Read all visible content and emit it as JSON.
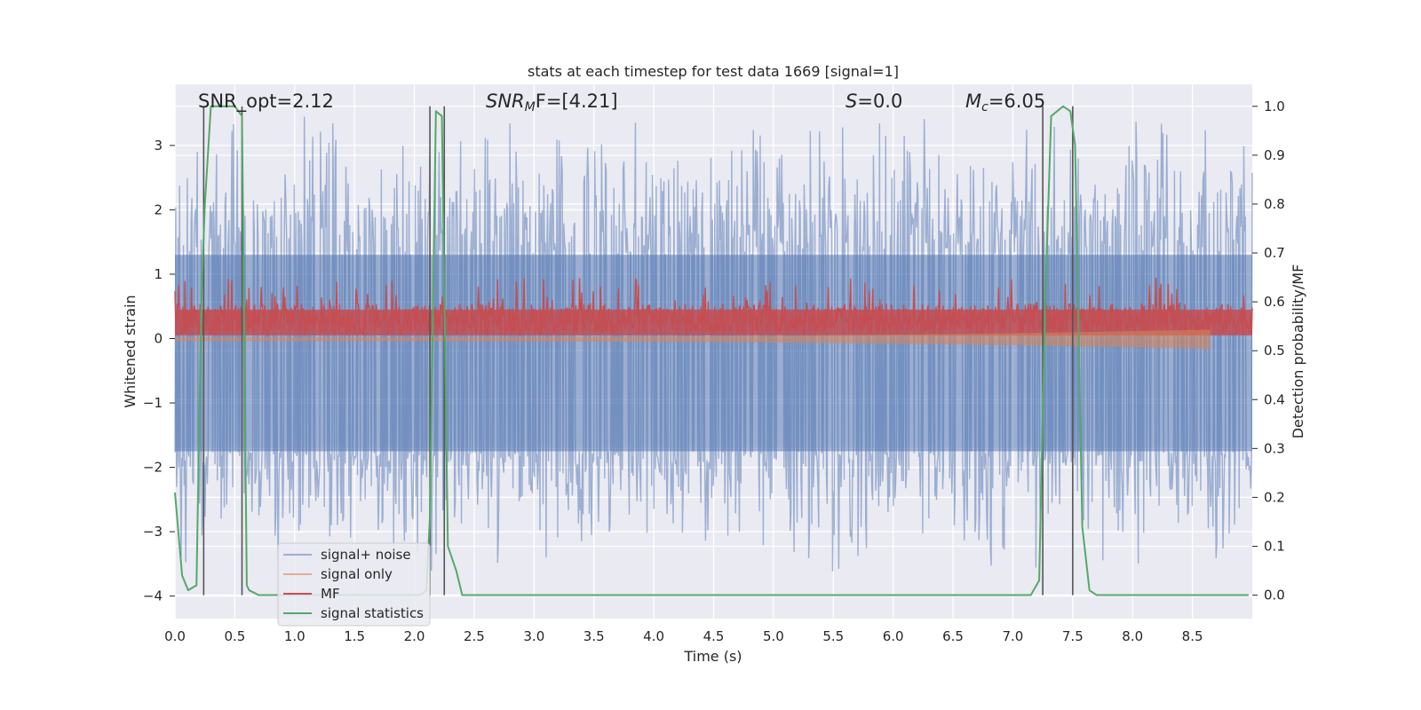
{
  "chart_data": {
    "type": "line",
    "title": "stats at each timestep for test data 1669 [signal=1]",
    "xlabel": "Time (s)",
    "ylabel": "Whitened strain",
    "ylabel_right": "Detection probability/MF",
    "xlim": [
      0,
      9.0
    ],
    "ylim": [
      -4.35,
      3.95
    ],
    "ylim_right": [
      -0.048,
      1.045
    ],
    "x_ticks": [
      "0.0",
      "0.5",
      "1.0",
      "1.5",
      "2.0",
      "2.5",
      "3.0",
      "3.5",
      "4.0",
      "4.5",
      "5.0",
      "5.5",
      "6.0",
      "6.5",
      "7.0",
      "7.5",
      "8.0",
      "8.5"
    ],
    "y_ticks": [
      "−4",
      "−3",
      "−2",
      "−1",
      "0",
      "1",
      "2",
      "3"
    ],
    "y_ticks_right": [
      "0.0",
      "0.1",
      "0.2",
      "0.3",
      "0.4",
      "0.5",
      "0.6",
      "0.7",
      "0.8",
      "0.9",
      "1.0"
    ],
    "annotations": {
      "snr_opt": "SNR_opt=2.12",
      "snr_mf_base": "SNR",
      "snr_mf_sub": "M",
      "snr_mf_rest": "F=[4.21]",
      "s_base": "S",
      "s_rest": "=0.0",
      "mc_base": "M",
      "mc_sub": "c",
      "mc_rest": "=6.05"
    },
    "legend": [
      "signal+ noise",
      "signal only",
      "MF",
      "signal statistics"
    ],
    "series": [
      {
        "name": "signal statistics",
        "axis": "right",
        "color": "#55a868",
        "x": [
          0.0,
          0.06,
          0.11,
          0.18,
          0.22,
          0.25,
          0.3,
          0.4,
          0.5,
          0.56,
          0.6,
          0.62,
          0.7,
          0.8,
          1.5,
          2.0,
          2.05,
          2.1,
          2.13,
          2.18,
          2.23,
          2.28,
          2.35,
          2.4,
          3.0,
          4.0,
          5.0,
          6.0,
          7.0,
          7.15,
          7.22,
          7.27,
          7.32,
          7.37,
          7.42,
          7.48,
          7.52,
          7.58,
          7.64,
          7.7,
          8.5,
          8.97
        ],
        "y": [
          0.21,
          0.04,
          0.01,
          0.02,
          0.6,
          0.8,
          1.0,
          1.0,
          1.0,
          0.98,
          0.02,
          0.01,
          0.0,
          0.0,
          0.0,
          0.0,
          0.0,
          0.01,
          0.16,
          0.99,
          0.98,
          0.1,
          0.05,
          0.0,
          0.0,
          0.0,
          0.0,
          0.0,
          0.0,
          0.0,
          0.03,
          0.6,
          0.98,
          0.99,
          1.0,
          0.99,
          0.92,
          0.14,
          0.01,
          0.0,
          0.0,
          0.0
        ]
      },
      {
        "name": "signal+ noise",
        "axis": "left",
        "color": "#4c72b0",
        "band": [
          -1.75,
          1.3
        ],
        "peak_range": [
          -3.8,
          3.55
        ]
      },
      {
        "name": "MF",
        "axis": "left",
        "color": "#c44e52",
        "band": [
          0.0,
          0.55
        ]
      },
      {
        "name": "signal only",
        "axis": "left",
        "color": "#dd8452",
        "envelope_start": 0.02,
        "envelope_end": 0.14,
        "end_time": 8.65
      }
    ],
    "vertical_markers": [
      0.24,
      0.56,
      2.13,
      2.25,
      7.25,
      7.5
    ],
    "marker_color": "#555555",
    "grid": true,
    "legend_position": "lower left"
  }
}
